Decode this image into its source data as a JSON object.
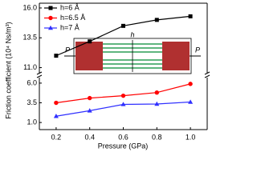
{
  "chart_data": [
    {
      "type": "line",
      "y_label": "Friction coefficient (10⁴ Ns/m³)",
      "legend": "upper left",
      "annotations": [
        "h",
        "P",
        "P"
      ],
      "x": [
        0.2,
        0.4,
        0.6,
        0.8,
        1.0
      ],
      "xlim": [
        0.1,
        1.1
      ],
      "ylim": [
        10.5,
        16.4
      ],
      "yticks": [
        {
          "value": 11,
          "label": "11.0"
        },
        13.5,
        {
          "value": 16,
          "label": "16.0"
        }
      ],
      "series": [
        {
          "name": "h=6 Å",
          "color": "#000000",
          "marker": "square",
          "values": [
            12.0,
            13.2,
            14.5,
            15.0,
            15.3
          ]
        }
      ]
    },
    {
      "type": "line",
      "x_label": "Pressure (GPa)",
      "x": [
        0.2,
        0.4,
        0.6,
        0.8,
        1.0
      ],
      "xlim": [
        0.1,
        1.1
      ],
      "xticks": [
        0.2,
        0.4,
        0.6,
        0.8,
        {
          "value": 1.0,
          "label": "1.0"
        }
      ],
      "ylim": [
        0.1,
        6.7
      ],
      "yticks": [
        {
          "value": 1,
          "label": "1.0"
        },
        3.5,
        {
          "value": 6,
          "label": "6.0"
        }
      ],
      "series": [
        {
          "name": "h=6.5 Å",
          "color": "#ff0000",
          "marker": "circle",
          "values": [
            3.5,
            4.1,
            4.4,
            4.8,
            5.9
          ]
        },
        {
          "name": "h=7 Å",
          "color": "#3030ff",
          "marker": "triangle",
          "values": [
            1.8,
            2.5,
            3.3,
            3.35,
            3.6
          ]
        }
      ]
    }
  ]
}
